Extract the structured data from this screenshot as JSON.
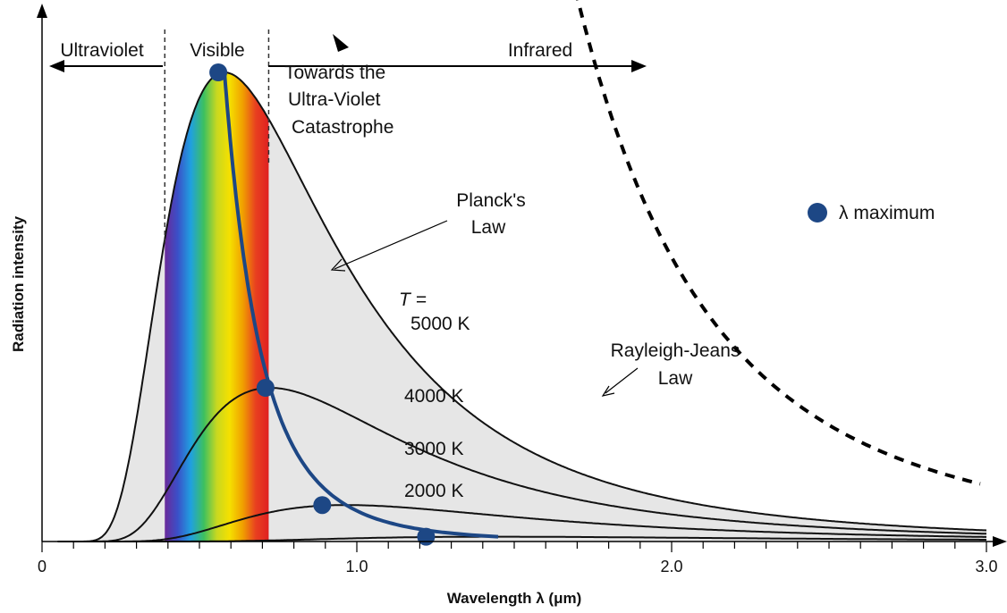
{
  "chart_data": {
    "type": "line",
    "xlabel": "Wavelength λ (μm)",
    "ylabel": "Radiation intensity",
    "xlim": [
      0,
      3.0
    ],
    "x_ticks": [
      "0",
      "1.0",
      "2.0",
      "3.0"
    ],
    "series": [
      {
        "name": "5000 K",
        "label_parts": [
          "T =",
          "5000 K"
        ],
        "temperature_k": 5000
      },
      {
        "name": "4000 K",
        "temperature_k": 4000
      },
      {
        "name": "3000 K",
        "temperature_k": 3000
      },
      {
        "name": "2000 K",
        "temperature_k": 2000
      }
    ],
    "lambda_max_points": [
      {
        "temperature_k": 5000,
        "x": 0.56
      },
      {
        "temperature_k": 4000,
        "x": 0.71
      },
      {
        "temperature_k": 3000,
        "x": 0.89
      },
      {
        "temperature_k": 2000,
        "x": 1.22
      }
    ],
    "regions": [
      {
        "name": "Ultraviolet",
        "x_range": [
          0,
          0.39
        ]
      },
      {
        "name": "Visible",
        "x_range": [
          0.39,
          0.72
        ]
      },
      {
        "name": "Infrared",
        "x_range": [
          0.72,
          3.0
        ]
      }
    ],
    "annotations": {
      "towards": [
        "Towards the",
        "Ultra-Violet",
        "Catastrophe"
      ],
      "planck": [
        "Planck's",
        "Law"
      ],
      "rayleigh": [
        "Rayleigh-Jeans",
        "Law"
      ]
    },
    "legend": {
      "label": "λ maximum",
      "position": "right"
    },
    "colors": {
      "curve": "#111111",
      "fill": "#e6e6e6",
      "max_point": "#1d4785",
      "max_line": "#1d4785",
      "spectrum": [
        "#6a2a9a",
        "#3a50c8",
        "#20a0e0",
        "#3cc060",
        "#c8d820",
        "#f5e000",
        "#f0a000",
        "#e84020",
        "#e02020"
      ]
    }
  }
}
